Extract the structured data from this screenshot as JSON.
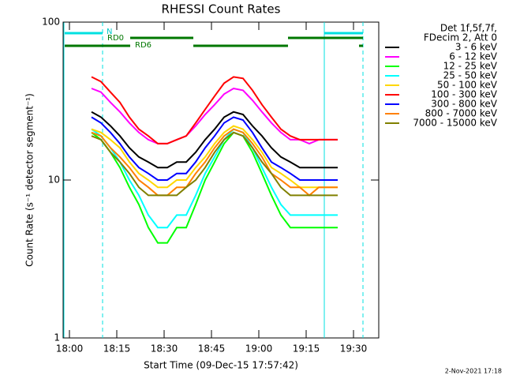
{
  "chart_data": {
    "type": "line",
    "title": "RHESSI Count Rates",
    "xlabel": "Start Time (09-Dec-15 17:57:42)",
    "ylabel": "Count Rate (s⁻¹ detector segment⁻¹)",
    "legend_header": [
      "Det 1f,5f,7f,",
      "FDecim 2, Att 0"
    ],
    "flags": [
      "N",
      "RD0",
      "RD6"
    ],
    "footer": "2-Nov-2021 17:18",
    "log_y": true,
    "xlim": [
      -2,
      98
    ],
    "ylim": [
      1,
      100
    ],
    "xticks": [
      {
        "value": 0,
        "label": "18:00"
      },
      {
        "value": 15,
        "label": "18:15"
      },
      {
        "value": 30,
        "label": "18:30"
      },
      {
        "value": 45,
        "label": "18:45"
      },
      {
        "value": 60,
        "label": "19:00"
      },
      {
        "value": 75,
        "label": "19:15"
      },
      {
        "value": 90,
        "label": "19:30"
      }
    ],
    "yticks": [
      1,
      10,
      100
    ],
    "x": [
      7,
      10,
      13,
      16,
      19,
      22,
      25,
      28,
      31,
      34,
      37,
      40,
      43,
      46,
      49,
      52,
      55,
      58,
      61,
      64,
      67,
      70,
      73,
      76,
      79,
      82,
      85
    ],
    "series": [
      {
        "name": "3 - 6 keV",
        "color": "#000000",
        "values": [
          27,
          25,
          22,
          19,
          16,
          14,
          13,
          12,
          12,
          13,
          13,
          15,
          18,
          21,
          25,
          27,
          26,
          22,
          19,
          16,
          14,
          13,
          12,
          12,
          12,
          12,
          12
        ]
      },
      {
        "name": "6 - 12 keV",
        "color": "#ff00ff",
        "values": [
          38,
          36,
          31,
          27,
          23,
          20,
          18,
          17,
          17,
          18,
          19,
          22,
          26,
          30,
          35,
          38,
          37,
          32,
          27,
          23,
          20,
          18,
          18,
          17,
          18,
          18,
          18
        ]
      },
      {
        "name": "12 - 25 keV",
        "color": "#00ff00",
        "values": [
          20,
          18,
          15,
          12,
          9,
          7,
          5,
          4,
          4,
          5,
          5,
          7,
          10,
          13,
          17,
          20,
          19,
          15,
          11,
          8,
          6,
          5,
          5,
          5,
          5,
          5,
          5
        ]
      },
      {
        "name": "25 - 50 keV",
        "color": "#00ffff",
        "values": [
          21,
          19,
          16,
          13,
          10,
          8,
          6,
          5,
          5,
          6,
          6,
          8,
          11,
          14,
          18,
          21,
          20,
          16,
          12,
          9,
          7,
          6,
          6,
          6,
          6,
          6,
          6
        ]
      },
      {
        "name": "50 - 100 keV",
        "color": "#ffd700",
        "values": [
          21,
          20,
          18,
          16,
          13,
          11,
          10,
          9,
          9,
          10,
          10,
          12,
          14,
          17,
          20,
          22,
          21,
          18,
          15,
          12,
          11,
          10,
          9,
          9,
          9,
          9,
          9
        ]
      },
      {
        "name": "100 - 300 keV",
        "color": "#ff0000",
        "values": [
          45,
          42,
          36,
          31,
          25,
          21,
          19,
          17,
          17,
          18,
          19,
          23,
          28,
          34,
          41,
          45,
          44,
          37,
          30,
          25,
          21,
          19,
          18,
          18,
          18,
          18,
          18
        ]
      },
      {
        "name": "300 - 800 keV",
        "color": "#0000ff",
        "values": [
          25,
          23,
          20,
          17,
          14,
          12,
          11,
          10,
          10,
          11,
          11,
          13,
          16,
          19,
          23,
          25,
          24,
          20,
          16,
          13,
          12,
          11,
          10,
          10,
          10,
          10,
          10
        ]
      },
      {
        "name": "800 - 7000 keV",
        "color": "#ff8000",
        "values": [
          20,
          19,
          16,
          14,
          12,
          10,
          9,
          8,
          8,
          9,
          9,
          11,
          13,
          16,
          19,
          21,
          20,
          17,
          14,
          11,
          10,
          9,
          9,
          8,
          9,
          9,
          9
        ]
      },
      {
        "name": "7000 - 15000 keV",
        "color": "#808000",
        "values": [
          19,
          18,
          15,
          13,
          11,
          9,
          8,
          8,
          8,
          8,
          9,
          10,
          12,
          15,
          18,
          20,
          19,
          16,
          13,
          11,
          9,
          8,
          8,
          8,
          8,
          8,
          8
        ]
      }
    ]
  }
}
